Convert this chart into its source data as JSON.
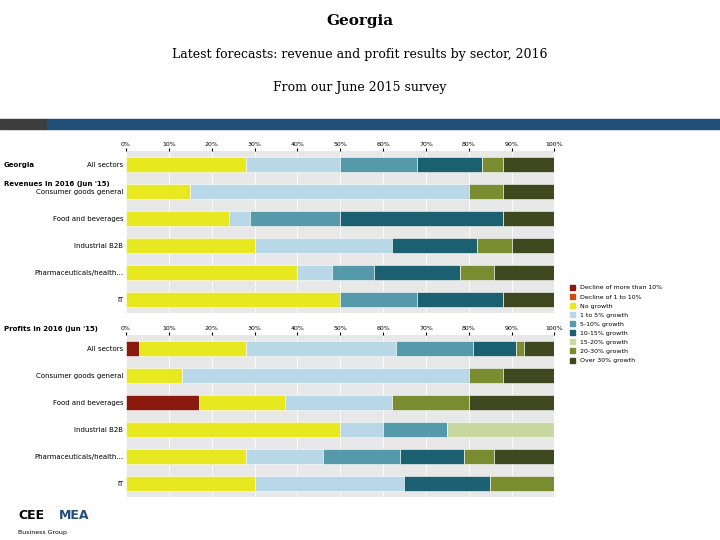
{
  "title": "Georgia",
  "subtitle1": "Latest forecasts: revenue and profit results by sector, 2016",
  "subtitle2": "From our June 2015 survey",
  "white_bg": "#ffffff",
  "chart_bg": "#e8e8e8",
  "stripe_dark": "#3d3d3d",
  "stripe_blue": "#1f4e79",
  "categories": [
    "All sectors",
    "Consumer goods general",
    "Food and beverages",
    "Industrial B2B",
    "Pharmaceuticals/health...",
    "IT"
  ],
  "legend_labels": [
    "Decline of more than 10%",
    "Decline of 1 to 10%",
    "No growth",
    "1 to 5% growth",
    "5-10% growth",
    "10-15% growth",
    "15-20% growth",
    "20-30% growth",
    "Over 30% growth"
  ],
  "colors": [
    "#8b1a0e",
    "#c8500a",
    "#e8e820",
    "#b8d8e8",
    "#5599aa",
    "#1a6070",
    "#c8d8a0",
    "#7a8c30",
    "#404820"
  ],
  "revenue_data": [
    [
      0,
      0,
      28,
      22,
      18,
      15,
      0,
      5,
      12
    ],
    [
      0,
      0,
      15,
      65,
      0,
      0,
      0,
      8,
      12
    ],
    [
      0,
      0,
      24,
      5,
      21,
      38,
      0,
      0,
      12
    ],
    [
      0,
      0,
      30,
      32,
      0,
      20,
      0,
      8,
      10
    ],
    [
      0,
      0,
      40,
      8,
      10,
      20,
      0,
      8,
      14
    ],
    [
      0,
      0,
      50,
      0,
      18,
      20,
      0,
      0,
      12
    ]
  ],
  "profit_data": [
    [
      3,
      0,
      25,
      35,
      18,
      10,
      0,
      2,
      7
    ],
    [
      0,
      0,
      13,
      67,
      0,
      0,
      0,
      8,
      12
    ],
    [
      17,
      0,
      20,
      25,
      0,
      0,
      0,
      18,
      20
    ],
    [
      0,
      0,
      50,
      10,
      15,
      0,
      25,
      0,
      0
    ],
    [
      0,
      0,
      28,
      18,
      18,
      15,
      0,
      7,
      14
    ],
    [
      0,
      0,
      30,
      35,
      0,
      20,
      0,
      15,
      0
    ]
  ],
  "title_fontsize": 11,
  "subtitle_fontsize": 9,
  "label_fontsize": 5,
  "tick_fontsize": 4.5,
  "section_fontsize": 5,
  "legend_fontsize": 4.5
}
